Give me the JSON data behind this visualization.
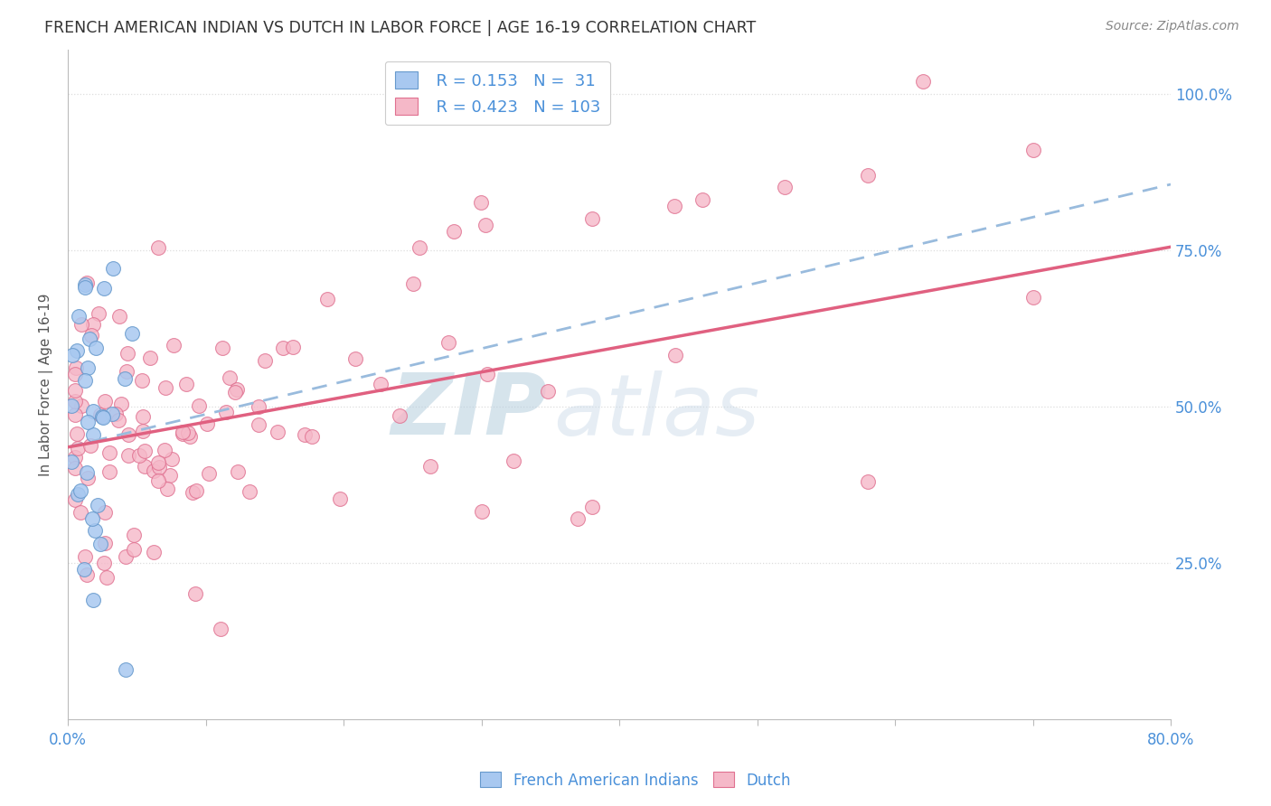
{
  "title": "FRENCH AMERICAN INDIAN VS DUTCH IN LABOR FORCE | AGE 16-19 CORRELATION CHART",
  "source": "Source: ZipAtlas.com",
  "ylabel": "In Labor Force | Age 16-19",
  "xmin": 0.0,
  "xmax": 0.8,
  "ymin": 0.0,
  "ymax": 1.07,
  "legend_R1": "R = 0.153",
  "legend_N1": "N =  31",
  "legend_R2": "R = 0.423",
  "legend_N2": "N = 103",
  "color_blue_fill": "#A8C8F0",
  "color_blue_edge": "#6699CC",
  "color_pink_fill": "#F5B8C8",
  "color_pink_edge": "#E07090",
  "color_trend_blue": "#99BBDD",
  "color_trend_pink": "#E06080",
  "watermark_color": "#C5D8EC",
  "background_color": "#FFFFFF",
  "grid_color": "#DDDDDD",
  "trend_blue_x0": 0.0,
  "trend_blue_y0": 0.435,
  "trend_blue_x1": 0.8,
  "trend_blue_y1": 0.855,
  "trend_pink_x0": 0.0,
  "trend_pink_y0": 0.435,
  "trend_pink_x1": 0.8,
  "trend_pink_y1": 0.755
}
